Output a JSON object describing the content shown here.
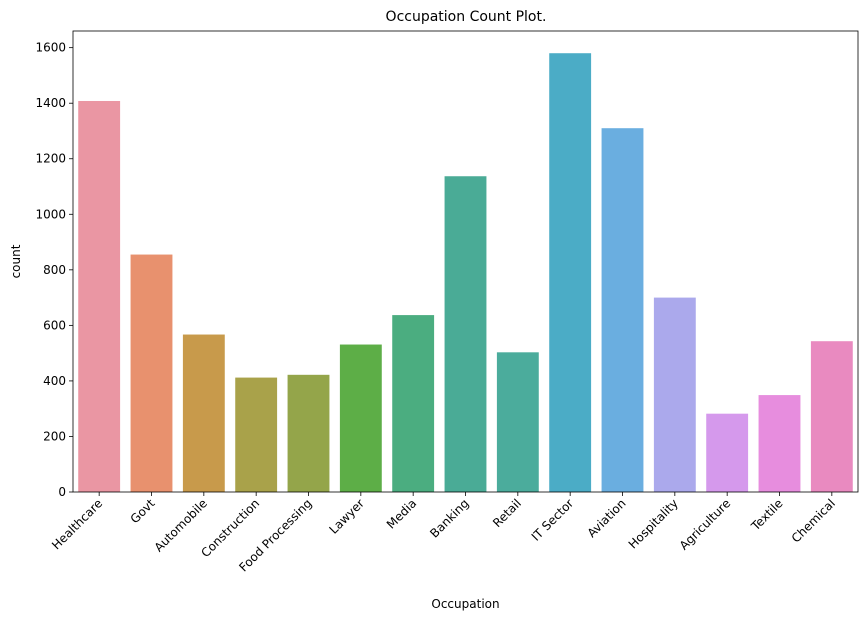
{
  "chart_data": {
    "type": "bar",
    "title": "Occupation Count Plot.",
    "xlabel": "Occupation",
    "ylabel": "count",
    "categories": [
      "Healthcare",
      "Govt",
      "Automobile",
      "Construction",
      "Food Processing",
      "Lawyer",
      "Media",
      "Banking",
      "Retail",
      "IT Sector",
      "Aviation",
      "Hospitality",
      "Agriculture",
      "Textile",
      "Chemical"
    ],
    "values": [
      1408,
      855,
      567,
      412,
      422,
      531,
      637,
      1137,
      503,
      1580,
      1310,
      700,
      282,
      349,
      543
    ],
    "colors": [
      "#ea96a3",
      "#e8916e",
      "#c89a4b",
      "#a9a24a",
      "#94a54a",
      "#5dae47",
      "#4bad80",
      "#4aab96",
      "#4bac9c",
      "#4bacc6",
      "#6aaee0",
      "#aba9ec",
      "#d599ec",
      "#e78dde",
      "#e98ac0"
    ],
    "ylim": [
      0,
      1660
    ],
    "yticks": [
      0,
      200,
      400,
      600,
      800,
      1000,
      1200,
      1400,
      1600
    ],
    "grid": false
  }
}
